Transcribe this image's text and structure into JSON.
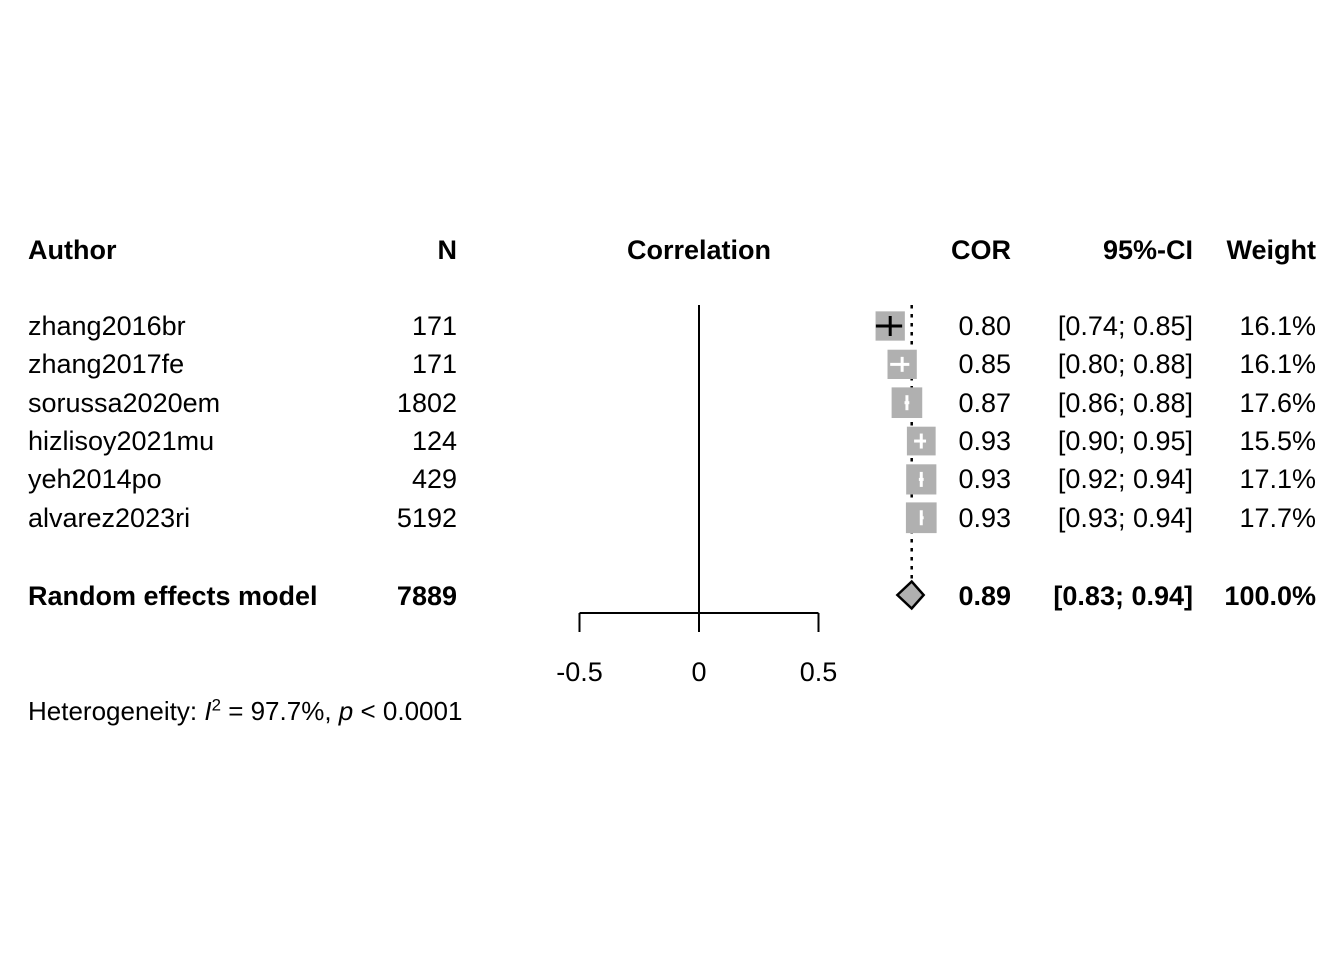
{
  "colors": {
    "square_fill": "#b0b0b0",
    "diamond_fill": "#b0b0b0",
    "line": "#000000",
    "background": "#ffffff"
  },
  "chart_data": {
    "type": "forest",
    "title": "",
    "columns": {
      "author": "Author",
      "n": "N",
      "correlation": "Correlation",
      "cor": "COR",
      "ci": "95%-CI",
      "weight": "Weight"
    },
    "studies": [
      {
        "author": "zhang2016br",
        "n_label": "171",
        "n": 171,
        "cor": 0.8,
        "ci_low": 0.74,
        "ci_high": 0.85,
        "cor_label": "0.80",
        "ci_label": "[0.74; 0.85]",
        "weight": 16.1,
        "weight_label": "16.1%",
        "ci_style": "black"
      },
      {
        "author": "zhang2017fe",
        "n_label": "171",
        "n": 171,
        "cor": 0.85,
        "ci_low": 0.8,
        "ci_high": 0.88,
        "cor_label": "0.85",
        "ci_label": "[0.80; 0.88]",
        "weight": 16.1,
        "weight_label": "16.1%",
        "ci_style": "white"
      },
      {
        "author": "sorussa2020em",
        "n_label": "1802",
        "n": 1802,
        "cor": 0.87,
        "ci_low": 0.86,
        "ci_high": 0.88,
        "cor_label": "0.87",
        "ci_label": "[0.86; 0.88]",
        "weight": 17.6,
        "weight_label": "17.6%",
        "ci_style": "white"
      },
      {
        "author": "hizlisoy2021mu",
        "n_label": "124",
        "n": 124,
        "cor": 0.93,
        "ci_low": 0.9,
        "ci_high": 0.95,
        "cor_label": "0.93",
        "ci_label": "[0.90; 0.95]",
        "weight": 15.5,
        "weight_label": "15.5%",
        "ci_style": "white"
      },
      {
        "author": "yeh2014po",
        "n_label": "429",
        "n": 429,
        "cor": 0.93,
        "ci_low": 0.92,
        "ci_high": 0.94,
        "cor_label": "0.93",
        "ci_label": "[0.92; 0.94]",
        "weight": 17.1,
        "weight_label": "17.1%",
        "ci_style": "white"
      },
      {
        "author": "alvarez2023ri",
        "n_label": "5192",
        "n": 5192,
        "cor": 0.93,
        "ci_low": 0.93,
        "ci_high": 0.94,
        "cor_label": "0.93",
        "ci_label": "[0.93; 0.94]",
        "weight": 17.7,
        "weight_label": "17.7%",
        "ci_style": "white"
      }
    ],
    "summary": {
      "label": "Random effects model",
      "n_label": "7889",
      "n": 7889,
      "cor": 0.89,
      "ci_low": 0.83,
      "ci_high": 0.94,
      "cor_label": "0.89",
      "ci_label": "[0.83; 0.94]",
      "weight_label": "100.0%"
    },
    "axis": {
      "xlim": [
        -0.5,
        0.5
      ],
      "ticks": [
        {
          "value": -0.5,
          "label": "-0.5"
        },
        {
          "value": 0,
          "label": "0"
        },
        {
          "value": 0.5,
          "label": "0.5"
        }
      ]
    },
    "heterogeneity": {
      "prefix": "Heterogeneity: ",
      "stat": "I",
      "stat_sup": "2",
      "mid": " = 97.7%, ",
      "p": "p",
      "tail": " < 0.0001"
    }
  }
}
